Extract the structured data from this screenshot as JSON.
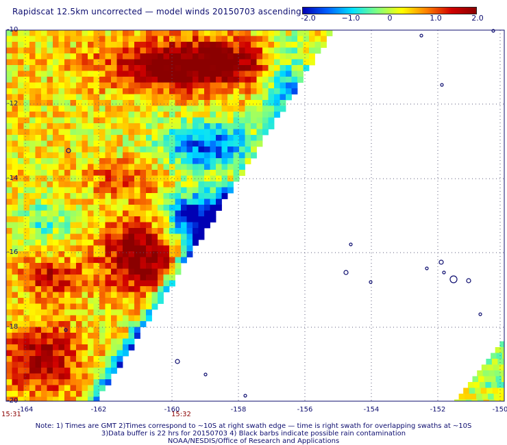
{
  "title": "Rapidscat 12.5km uncorrected — model winds 20150703 ascending",
  "colorbar": {
    "ticks": [
      "-2.0",
      "−1.0",
      "0",
      "1.0",
      "2.0"
    ],
    "colors": [
      "#0000b4",
      "#0060ff",
      "#00e0ff",
      "#80ff80",
      "#ffff00",
      "#ff8000",
      "#d00000",
      "#8b0000"
    ]
  },
  "axes": {
    "y_labels": [
      "-10",
      "-12",
      "-14",
      "-16",
      "-18",
      "-20"
    ],
    "x_labels": [
      "-164",
      "-162",
      "-160",
      "-158",
      "-156",
      "-154",
      "-152",
      "-150"
    ]
  },
  "times": [
    "15:31",
    "15:32"
  ],
  "footer": {
    "line1": "Note: 1) Times are GMT 2)Times correspond to ~10S at right swath edge — time is right swath for overlapping swaths at ~10S",
    "line2": "3)Data buffer is 22 hrs for 20150703 4) Black barbs indicate possible rain contamination",
    "line3": "NOAA/NESDIS/Office of Research and Applications"
  }
}
